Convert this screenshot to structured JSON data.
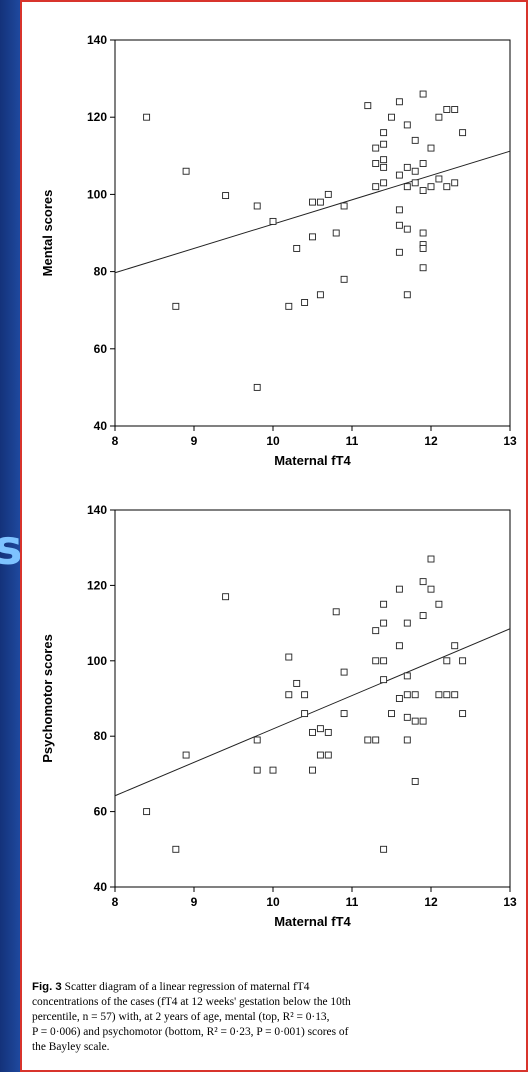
{
  "decor": {
    "slide_letter": "s"
  },
  "chart_data": [
    {
      "type": "scatter",
      "title": "",
      "xlabel": "Maternal fT4",
      "ylabel": "Mental scores",
      "xlim": [
        8,
        13
      ],
      "ylim": [
        40,
        140
      ],
      "xticks": [
        "8",
        "9",
        "10",
        "11",
        "12",
        "13"
      ],
      "yticks": [
        "40",
        "60",
        "80",
        "100",
        "120",
        "140"
      ],
      "grid": false,
      "marker": "open-square",
      "regression_line": [
        [
          8,
          79.7
        ],
        [
          13,
          111.2
        ]
      ],
      "points": [
        [
          8.4,
          120
        ],
        [
          8.77,
          71
        ],
        [
          8.9,
          106
        ],
        [
          9.4,
          99.7
        ],
        [
          9.8,
          97
        ],
        [
          9.8,
          50
        ],
        [
          10.0,
          93
        ],
        [
          10.2,
          71
        ],
        [
          10.3,
          86
        ],
        [
          10.4,
          72
        ],
        [
          10.5,
          89
        ],
        [
          10.5,
          98
        ],
        [
          10.6,
          98
        ],
        [
          10.6,
          74
        ],
        [
          10.7,
          100
        ],
        [
          10.8,
          90
        ],
        [
          10.9,
          97
        ],
        [
          10.9,
          78
        ],
        [
          11.2,
          123
        ],
        [
          11.3,
          112
        ],
        [
          11.3,
          108
        ],
        [
          11.3,
          102
        ],
        [
          11.4,
          116
        ],
        [
          11.4,
          113
        ],
        [
          11.4,
          109
        ],
        [
          11.4,
          107
        ],
        [
          11.4,
          103
        ],
        [
          11.5,
          120
        ],
        [
          11.6,
          124
        ],
        [
          11.6,
          105
        ],
        [
          11.6,
          96
        ],
        [
          11.6,
          92
        ],
        [
          11.6,
          85
        ],
        [
          11.7,
          118
        ],
        [
          11.7,
          107
        ],
        [
          11.7,
          102
        ],
        [
          11.7,
          91
        ],
        [
          11.7,
          74
        ],
        [
          11.8,
          114
        ],
        [
          11.8,
          106
        ],
        [
          11.8,
          103
        ],
        [
          11.9,
          126
        ],
        [
          11.9,
          108
        ],
        [
          11.9,
          101
        ],
        [
          11.9,
          90
        ],
        [
          11.9,
          87
        ],
        [
          11.9,
          86
        ],
        [
          11.9,
          81
        ],
        [
          12.0,
          112
        ],
        [
          12.0,
          102
        ],
        [
          12.1,
          120
        ],
        [
          12.1,
          104
        ],
        [
          12.2,
          122
        ],
        [
          12.2,
          102
        ],
        [
          12.3,
          122
        ],
        [
          12.3,
          103
        ],
        [
          12.4,
          116
        ]
      ]
    },
    {
      "type": "scatter",
      "title": "",
      "xlabel": "Maternal fT4",
      "ylabel": "Psychomotor scores",
      "xlim": [
        8,
        13
      ],
      "ylim": [
        40,
        140
      ],
      "xticks": [
        "8",
        "9",
        "10",
        "11",
        "12",
        "13"
      ],
      "yticks": [
        "40",
        "60",
        "80",
        "100",
        "120",
        "140"
      ],
      "grid": false,
      "marker": "open-square",
      "regression_line": [
        [
          8,
          64.2
        ],
        [
          13,
          108.5
        ]
      ],
      "points": [
        [
          8.4,
          60
        ],
        [
          8.77,
          50
        ],
        [
          8.9,
          75
        ],
        [
          9.4,
          117
        ],
        [
          9.8,
          79
        ],
        [
          9.8,
          71
        ],
        [
          10.0,
          71
        ],
        [
          10.2,
          101
        ],
        [
          10.2,
          91
        ],
        [
          10.3,
          94
        ],
        [
          10.4,
          91
        ],
        [
          10.4,
          86
        ],
        [
          10.5,
          81
        ],
        [
          10.5,
          71
        ],
        [
          10.6,
          82
        ],
        [
          10.6,
          75
        ],
        [
          10.7,
          81
        ],
        [
          10.7,
          75
        ],
        [
          10.8,
          113
        ],
        [
          10.9,
          97
        ],
        [
          10.9,
          86
        ],
        [
          11.2,
          79
        ],
        [
          11.3,
          108
        ],
        [
          11.3,
          100
        ],
        [
          11.3,
          79
        ],
        [
          11.4,
          115
        ],
        [
          11.4,
          110
        ],
        [
          11.4,
          100
        ],
        [
          11.4,
          95
        ],
        [
          11.4,
          50
        ],
        [
          11.5,
          86
        ],
        [
          11.6,
          119
        ],
        [
          11.6,
          104
        ],
        [
          11.6,
          90
        ],
        [
          11.7,
          110
        ],
        [
          11.7,
          96
        ],
        [
          11.7,
          91
        ],
        [
          11.7,
          85
        ],
        [
          11.7,
          79
        ],
        [
          11.8,
          91
        ],
        [
          11.8,
          84
        ],
        [
          11.8,
          68
        ],
        [
          11.9,
          121
        ],
        [
          11.9,
          112
        ],
        [
          11.9,
          84
        ],
        [
          12.0,
          127
        ],
        [
          12.0,
          119
        ],
        [
          12.1,
          115
        ],
        [
          12.1,
          91
        ],
        [
          12.2,
          100
        ],
        [
          12.2,
          91
        ],
        [
          12.3,
          104
        ],
        [
          12.3,
          91
        ],
        [
          12.4,
          100
        ],
        [
          12.4,
          86
        ]
      ]
    }
  ],
  "caption": {
    "fig_label": "Fig. 3",
    "line1": "Scatter diagram of a linear regression of maternal fT4",
    "line2": "concentrations of the cases (fT4 at 12 weeks' gestation below the 10th",
    "line3": "percentile, n = 57) with, at 2 years of age, mental (top, R² = 0·13,",
    "line4": "P = 0·006) and psychomotor (bottom, R² = 0·23, P = 0·001) scores of",
    "line5": "the Bayley scale."
  }
}
